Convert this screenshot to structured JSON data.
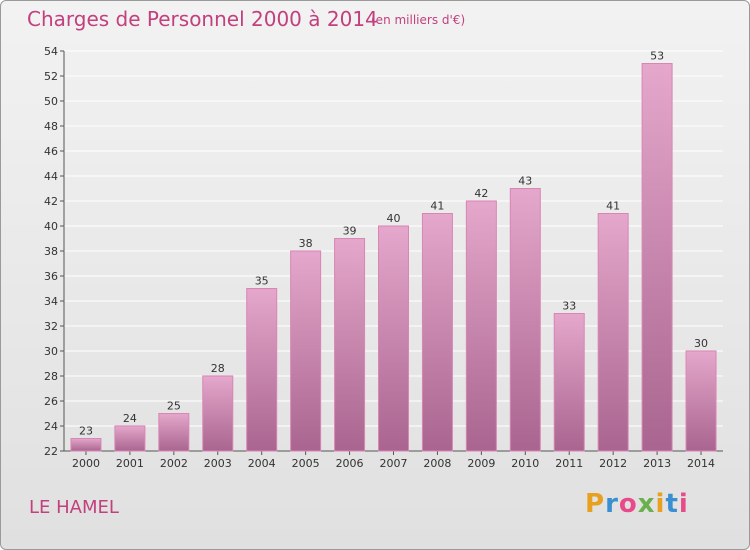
{
  "header": {
    "title": "Charges de Personnel 2000 à 2014",
    "subtitle": "(en milliers d'€)"
  },
  "footer": {
    "commune": "LE HAMEL",
    "logo_text": "Proxiti"
  },
  "colors": {
    "accent": "#c2407e",
    "bar_top": "#e5a7cb",
    "bar_bottom": "#a9658f",
    "bar_edge": "#d986b4",
    "grid": "#ffffff",
    "logo_letters": [
      "#e8a020",
      "#3a8fd0",
      "#e84b8a",
      "#6ab04c",
      "#e8a020",
      "#3a8fd0",
      "#e84b8a"
    ]
  },
  "chart_data": {
    "type": "bar",
    "title": "Charges de Personnel 2000 à 2014",
    "subtitle": "(en milliers d'€)",
    "xlabel": "",
    "ylabel": "",
    "categories": [
      "2000",
      "2001",
      "2002",
      "2003",
      "2004",
      "2005",
      "2006",
      "2007",
      "2008",
      "2009",
      "2010",
      "2011",
      "2012",
      "2013",
      "2014"
    ],
    "values": [
      23,
      24,
      25,
      28,
      35,
      38,
      39,
      40,
      41,
      42,
      43,
      33,
      41,
      53,
      30
    ],
    "ylim": [
      22,
      54
    ],
    "yticks": [
      22,
      24,
      26,
      28,
      30,
      32,
      34,
      36,
      38,
      40,
      42,
      44,
      46,
      48,
      50,
      52,
      54
    ],
    "grid": true,
    "legend": "none"
  }
}
